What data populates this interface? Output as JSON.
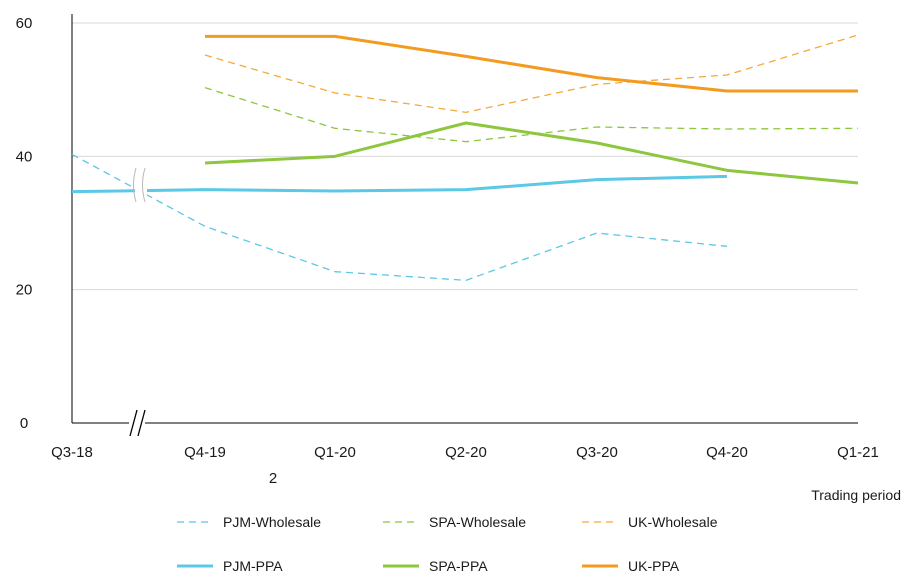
{
  "chart_data": {
    "type": "line",
    "title": "",
    "xlabel": "Trading period",
    "ylabel": "",
    "ylim": [
      0,
      60
    ],
    "yticks": [
      0,
      20,
      40,
      60
    ],
    "categories": [
      "Q3-18",
      "Q4-19",
      "Q1-20",
      "Q2-20",
      "Q3-20",
      "Q4-20",
      "Q1-21"
    ],
    "axis_break_between": [
      "Q3-18",
      "Q4-19"
    ],
    "extra_label": "2",
    "grid": "horizontal",
    "legend_position": "bottom",
    "series": [
      {
        "name": "PJM-Wholesale",
        "color": "#5bc8e6",
        "dash": "dashed",
        "values": [
          40.3,
          29.5,
          22.7,
          21.4,
          28.5,
          26.5,
          null
        ]
      },
      {
        "name": "SPA-Wholesale",
        "color": "#8dc63f",
        "dash": "dashed",
        "values": [
          null,
          50.3,
          44.2,
          42.2,
          44.4,
          44.1,
          44.2
        ]
      },
      {
        "name": "UK-Wholesale",
        "color": "#f5a83a",
        "dash": "dashed",
        "values": [
          null,
          55.2,
          49.5,
          46.6,
          50.8,
          52.2,
          58.2
        ]
      },
      {
        "name": "PJM-PPA",
        "color": "#5bc8e6",
        "dash": "solid",
        "values": [
          34.7,
          35.0,
          34.8,
          35.0,
          36.5,
          37.0,
          null
        ]
      },
      {
        "name": "SPA-PPA",
        "color": "#8dc63f",
        "dash": "solid",
        "values": [
          null,
          39.0,
          40.0,
          45.0,
          42.0,
          37.9,
          36.0
        ]
      },
      {
        "name": "UK-PPA",
        "color": "#f39b1f",
        "dash": "solid",
        "values": [
          null,
          58.0,
          58.0,
          55.0,
          51.8,
          49.8,
          49.8
        ]
      }
    ]
  }
}
